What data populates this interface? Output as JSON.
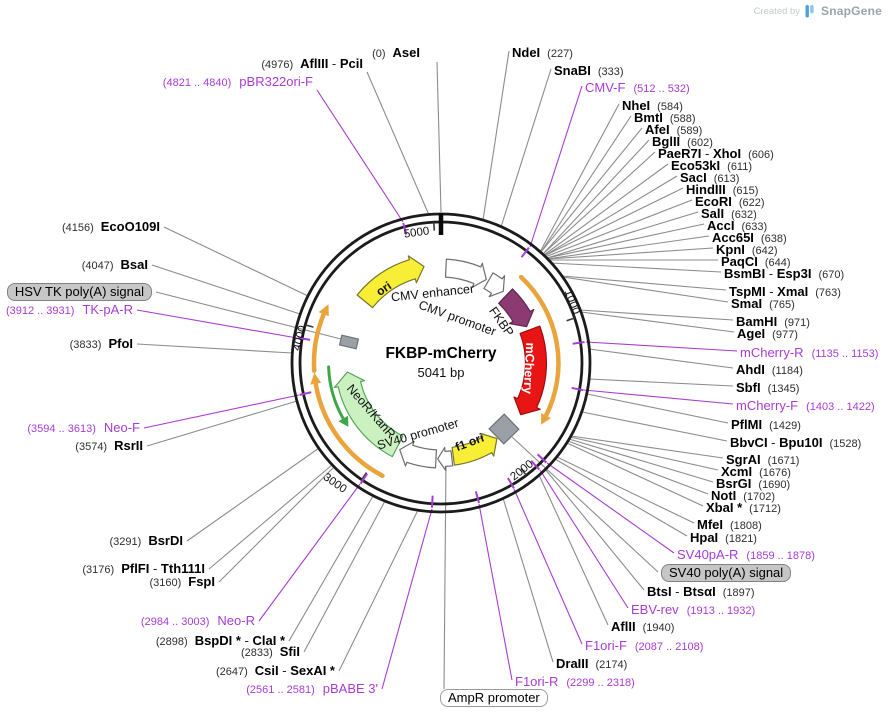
{
  "credit": {
    "prefix": "Created by",
    "brand": "SnapGene"
  },
  "plasmid": {
    "name": "FKBP-mCherry",
    "size": "5041 bp"
  },
  "colors": {
    "primer": "#a83cd2",
    "enzyme_line": "#8c8c8c",
    "ring": "#1b1b1b",
    "orf_arc": "#e9a43c",
    "orf_arc_green": "#3fa648",
    "yellow_feature": "#f7ee35",
    "fkbp_fill": "#8c3a72",
    "mcherry_fill": "#e91515",
    "neor_fill": "#cbf1c0",
    "gray_feature": "#9aa0a6"
  },
  "tick_labels": [
    "5000",
    "1000",
    "2000",
    "3000",
    "4000"
  ],
  "features": [
    {
      "label": "ori",
      "fill": "#f7ee35"
    },
    {
      "label": "CMV enhancer",
      "fill": "#ffffff"
    },
    {
      "label": "CMV promoter",
      "fill": "#ffffff"
    },
    {
      "label": "FKBP",
      "fill": "#8c3a72"
    },
    {
      "label": "mCherry",
      "fill": "#e91515"
    },
    {
      "label": "SV40 poly(A) signal",
      "fill": "#9aa0a6"
    },
    {
      "label": "f1 ori",
      "fill": "#f7ee35"
    },
    {
      "label": "AmpR promoter",
      "fill": "#ffffff"
    },
    {
      "label": "SV40 promoter",
      "fill": "#ffffff"
    },
    {
      "label": "NeoR/KanR",
      "fill": "#cbf1c0"
    },
    {
      "label": "HSV TK poly(A) signal",
      "fill": "#9aa0a6"
    }
  ],
  "callouts": [
    {
      "label": "NdeI",
      "pos": "(227)",
      "kind": "enzyme"
    },
    {
      "label": "SnaBI",
      "pos": "(333)",
      "kind": "enzyme"
    },
    {
      "label": "CMV-F",
      "pos": "(512 .. 532)",
      "kind": "primer"
    },
    {
      "label": "NheI",
      "pos": "(584)",
      "kind": "enzyme"
    },
    {
      "label": "BmtI",
      "pos": "(588)",
      "kind": "enzyme"
    },
    {
      "label": "AfeI",
      "pos": "(589)",
      "kind": "enzyme"
    },
    {
      "label": "BglII",
      "pos": "(602)",
      "kind": "enzyme"
    },
    {
      "label": "PaeR7I - XhoI",
      "pos": "(606)",
      "kind": "enzyme"
    },
    {
      "label": "Eco53kI",
      "pos": "(611)",
      "kind": "enzyme"
    },
    {
      "label": "SacI",
      "pos": "(613)",
      "kind": "enzyme"
    },
    {
      "label": "HindIII",
      "pos": "(615)",
      "kind": "enzyme"
    },
    {
      "label": "EcoRI",
      "pos": "(622)",
      "kind": "enzyme"
    },
    {
      "label": "SalI",
      "pos": "(632)",
      "kind": "enzyme"
    },
    {
      "label": "AccI",
      "pos": "(633)",
      "kind": "enzyme"
    },
    {
      "label": "Acc65I",
      "pos": "(638)",
      "kind": "enzyme"
    },
    {
      "label": "KpnI",
      "pos": "(642)",
      "kind": "enzyme"
    },
    {
      "label": "PaqCI",
      "pos": "(644)",
      "kind": "enzyme"
    },
    {
      "label": "BsmBI - Esp3I",
      "pos": "(670)",
      "kind": "enzyme"
    },
    {
      "label": "TspMI - XmaI",
      "pos": "(763)",
      "kind": "enzyme"
    },
    {
      "label": "SmaI",
      "pos": "(765)",
      "kind": "enzyme"
    },
    {
      "label": "BamHI",
      "pos": "(971)",
      "kind": "enzyme"
    },
    {
      "label": "AgeI",
      "pos": "(977)",
      "kind": "enzyme"
    },
    {
      "label": "mCherry-R",
      "pos": "(1135 .. 1153)",
      "kind": "primer"
    },
    {
      "label": "AhdI",
      "pos": "(1184)",
      "kind": "enzyme"
    },
    {
      "label": "SbfI",
      "pos": "(1345)",
      "kind": "enzyme"
    },
    {
      "label": "mCherry-F",
      "pos": "(1403 .. 1422)",
      "kind": "primer"
    },
    {
      "label": "PflMI",
      "pos": "(1429)",
      "kind": "enzyme"
    },
    {
      "label": "BbvCI - Bpu10I",
      "pos": "(1528)",
      "kind": "enzyme"
    },
    {
      "label": "SgrAI",
      "pos": "(1671)",
      "kind": "enzyme"
    },
    {
      "label": "XcmI",
      "pos": "(1676)",
      "kind": "enzyme"
    },
    {
      "label": "BsrGI",
      "pos": "(1690)",
      "kind": "enzyme"
    },
    {
      "label": "NotI",
      "pos": "(1702)",
      "kind": "enzyme"
    },
    {
      "label": "XbaI *",
      "pos": "(1712)",
      "kind": "enzyme"
    },
    {
      "label": "MfeI",
      "pos": "(1808)",
      "kind": "enzyme"
    },
    {
      "label": "HpaI",
      "pos": "(1821)",
      "kind": "enzyme"
    },
    {
      "label": "SV40pA-R",
      "pos": "(1859 .. 1878)",
      "kind": "primer"
    },
    {
      "label": "SV40 poly(A) signal",
      "pos": "",
      "kind": "box-gray"
    },
    {
      "label": "BtsI - BtsαI",
      "pos": "(1897)",
      "kind": "enzyme"
    },
    {
      "label": "EBV-rev",
      "pos": "(1913 .. 1932)",
      "kind": "primer"
    },
    {
      "label": "AflII",
      "pos": "(1940)",
      "kind": "enzyme"
    },
    {
      "label": "F1ori-F",
      "pos": "(2087 .. 2108)",
      "kind": "primer"
    },
    {
      "label": "DraIII",
      "pos": "(2174)",
      "kind": "enzyme"
    },
    {
      "label": "F1ori-R",
      "pos": "(2299 .. 2318)",
      "kind": "primer"
    },
    {
      "label": "AmpR promoter",
      "pos": "",
      "kind": "box-white"
    },
    {
      "label": "AseI",
      "pos": "(0)",
      "kind": "enzyme"
    },
    {
      "label": "AflIII - PciI",
      "pos": "(4976)",
      "kind": "enzyme"
    },
    {
      "label": "pBR322ori-F",
      "pos": "(4821 .. 4840)",
      "kind": "primer"
    },
    {
      "label": "EcoO109I",
      "pos": "(4156)",
      "kind": "enzyme"
    },
    {
      "label": "BsaI",
      "pos": "(4047)",
      "kind": "enzyme"
    },
    {
      "label": "HSV TK poly(A) signal",
      "pos": "",
      "kind": "box-gray"
    },
    {
      "label": "TK-pA-R",
      "pos": "(3912 .. 3931)",
      "kind": "primer"
    },
    {
      "label": "PfoI",
      "pos": "(3833)",
      "kind": "enzyme"
    },
    {
      "label": "Neo-F",
      "pos": "(3594 .. 3613)",
      "kind": "primer"
    },
    {
      "label": "RsrII",
      "pos": "(3574)",
      "kind": "enzyme"
    },
    {
      "label": "BsrDI",
      "pos": "(3291)",
      "kind": "enzyme"
    },
    {
      "label": "PflFI - Tth111I",
      "pos": "(3176)",
      "kind": "enzyme"
    },
    {
      "label": "FspI",
      "pos": "(3160)",
      "kind": "enzyme"
    },
    {
      "label": "Neo-R",
      "pos": "(2984 .. 3003)",
      "kind": "primer"
    },
    {
      "label": "BspDI * - ClaI *",
      "pos": "(2898)",
      "kind": "enzyme"
    },
    {
      "label": "SfiI",
      "pos": "(2833)",
      "kind": "enzyme"
    },
    {
      "label": "CsiI - SexAI *",
      "pos": "(2647)",
      "kind": "enzyme"
    },
    {
      "label": "pBABE 3'",
      "pos": "(2561 .. 2581)",
      "kind": "primer"
    }
  ]
}
